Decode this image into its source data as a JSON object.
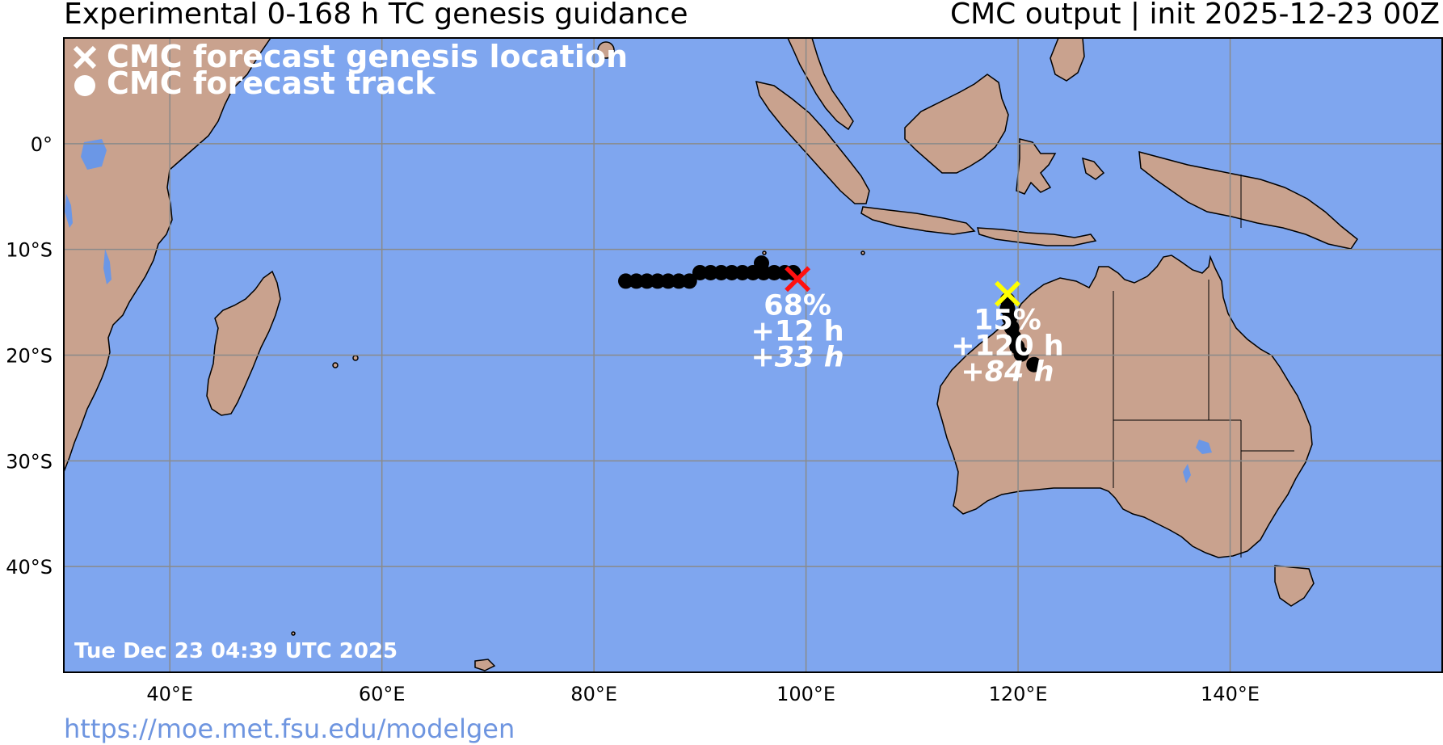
{
  "header": {
    "title_left": "Experimental 0-168 h TC genesis guidance",
    "title_right": "CMC output | init 2025-12-23 00Z"
  },
  "legend": {
    "genesis_label": "CMC forecast genesis location",
    "track_label": "CMC forecast track"
  },
  "map": {
    "lon_range": [
      30,
      160
    ],
    "lat_range": [
      -50,
      10
    ],
    "lon_ticks": [
      {
        "value": 40,
        "label": "40°E"
      },
      {
        "value": 60,
        "label": "60°E"
      },
      {
        "value": 80,
        "label": "80°E"
      },
      {
        "value": 100,
        "label": "100°E"
      },
      {
        "value": 120,
        "label": "120°E"
      },
      {
        "value": 140,
        "label": "140°E"
      }
    ],
    "lat_ticks": [
      {
        "value": 0,
        "label": "0°"
      },
      {
        "value": -10,
        "label": "10°S"
      },
      {
        "value": -20,
        "label": "20°S"
      },
      {
        "value": -30,
        "label": "30°S"
      },
      {
        "value": -40,
        "label": "40°S"
      }
    ],
    "colors": {
      "ocean": "#7fa6ef",
      "land": "#c9a28e",
      "lake": "#6b97e6",
      "grid": "#8a8a8a",
      "track": "#000000"
    }
  },
  "systems": [
    {
      "id": "system-1",
      "marker_color": "#ff1010",
      "genesis": {
        "lon": 99.2,
        "lat": -12.8
      },
      "track": [
        {
          "lon": 83.0,
          "lat": -13.0
        },
        {
          "lon": 84.0,
          "lat": -13.0
        },
        {
          "lon": 85.0,
          "lat": -13.0
        },
        {
          "lon": 86.0,
          "lat": -13.0
        },
        {
          "lon": 87.0,
          "lat": -13.0
        },
        {
          "lon": 88.0,
          "lat": -13.0
        },
        {
          "lon": 89.0,
          "lat": -13.0
        },
        {
          "lon": 90.0,
          "lat": -12.2
        },
        {
          "lon": 91.0,
          "lat": -12.2
        },
        {
          "lon": 92.0,
          "lat": -12.2
        },
        {
          "lon": 93.0,
          "lat": -12.2
        },
        {
          "lon": 94.0,
          "lat": -12.2
        },
        {
          "lon": 95.0,
          "lat": -12.2
        },
        {
          "lon": 95.8,
          "lat": -11.3
        },
        {
          "lon": 96.0,
          "lat": -12.2
        },
        {
          "lon": 97.0,
          "lat": -12.2
        },
        {
          "lon": 98.0,
          "lat": -12.2
        },
        {
          "lon": 98.8,
          "lat": -12.2
        }
      ],
      "probability": "68%",
      "lead_time": "+12 h",
      "duration": "+33 h"
    },
    {
      "id": "system-2",
      "marker_color": "#ffff00",
      "genesis": {
        "lon": 119.0,
        "lat": -14.2
      },
      "track": [
        {
          "lon": 119.0,
          "lat": -14.8
        },
        {
          "lon": 119.0,
          "lat": -15.6
        },
        {
          "lon": 119.2,
          "lat": -16.5
        },
        {
          "lon": 119.4,
          "lat": -17.4
        },
        {
          "lon": 119.6,
          "lat": -18.3
        },
        {
          "lon": 119.9,
          "lat": -19.2
        },
        {
          "lon": 120.3,
          "lat": -19.9
        },
        {
          "lon": 121.5,
          "lat": -20.9
        }
      ],
      "probability": "15%",
      "lead_time": "+120 h",
      "duration": "+84 h"
    }
  ],
  "timestamp": "Tue Dec 23 04:39 UTC 2025",
  "footer": {
    "url": "https://moe.met.fsu.edu/modelgen"
  }
}
